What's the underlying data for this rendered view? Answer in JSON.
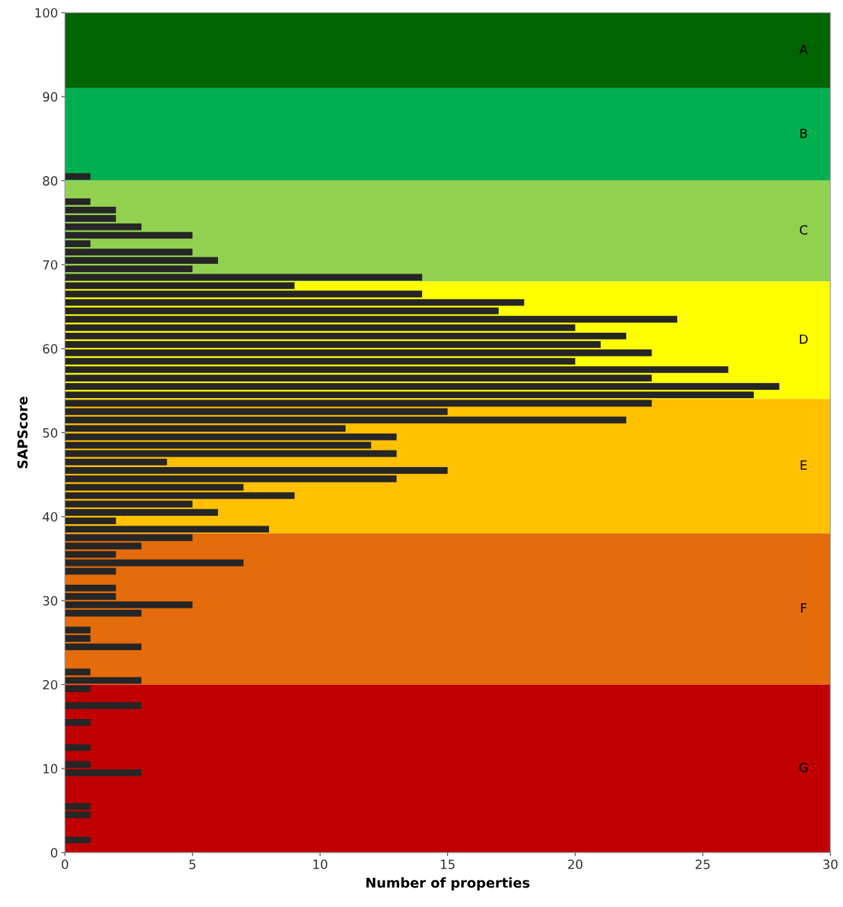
{
  "chart_data": {
    "type": "bar",
    "orientation": "horizontal",
    "xlabel": "Number of properties",
    "ylabel": "SAPScore",
    "x": [
      80.5,
      77.5,
      76.5,
      75.5,
      74.5,
      73.5,
      72.5,
      71.5,
      70.5,
      69.5,
      68.5,
      67.5,
      66.5,
      65.5,
      64.5,
      63.5,
      62.5,
      61.5,
      60.5,
      59.5,
      58.5,
      57.5,
      56.5,
      55.5,
      54.5,
      53.5,
      52.5,
      51.5,
      50.5,
      49.5,
      48.5,
      47.5,
      46.5,
      45.5,
      44.5,
      43.5,
      42.5,
      41.5,
      40.5,
      39.5,
      38.5,
      37.5,
      36.5,
      35.5,
      34.5,
      33.5,
      31.5,
      30.5,
      29.5,
      28.5,
      26.5,
      25.5,
      24.5,
      21.5,
      20.5,
      19.5,
      17.5,
      15.5,
      12.5,
      10.5,
      9.5,
      5.5,
      4.5,
      1.5
    ],
    "values": [
      1,
      1,
      2,
      2,
      3,
      5,
      1,
      5,
      6,
      5,
      14,
      9,
      14,
      18,
      17,
      24,
      20,
      22,
      21,
      23,
      20,
      26,
      23,
      28,
      27,
      23,
      15,
      22,
      11,
      13,
      12,
      13,
      4,
      15,
      13,
      7,
      9,
      5,
      6,
      2,
      8,
      5,
      3,
      2,
      7,
      2,
      2,
      2,
      5,
      3,
      1,
      1,
      3,
      1,
      3,
      1,
      3,
      1,
      1,
      1,
      3,
      1,
      1,
      1
    ],
    "color": "#262626",
    "xlim": [
      0,
      30
    ],
    "xticks": [
      0,
      5,
      10,
      15,
      20,
      25,
      30
    ],
    "ylim": [
      0,
      100
    ],
    "yticks": [
      0,
      10,
      20,
      30,
      40,
      50,
      60,
      70,
      80,
      90,
      100
    ],
    "grid": false,
    "legend": false,
    "bands": [
      {
        "axis": "y",
        "from": 91,
        "to": 100,
        "label": "A",
        "color": "#006400"
      },
      {
        "axis": "y",
        "from": 80,
        "to": 91,
        "label": "B",
        "color": "#00b050"
      },
      {
        "axis": "y",
        "from": 68,
        "to": 80,
        "label": "C",
        "color": "#92d050"
      },
      {
        "axis": "y",
        "from": 54,
        "to": 68,
        "label": "D",
        "color": "#ffff00"
      },
      {
        "axis": "y",
        "from": 38,
        "to": 54,
        "label": "E",
        "color": "#ffc000"
      },
      {
        "axis": "y",
        "from": 20,
        "to": 38,
        "label": "F",
        "color": "#e46c0a"
      },
      {
        "axis": "y",
        "from": 0,
        "to": 20,
        "label": "G",
        "color": "#c00000"
      }
    ]
  }
}
